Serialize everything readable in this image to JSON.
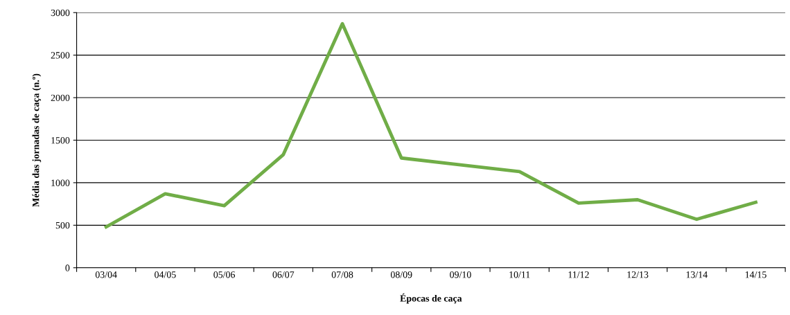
{
  "chart_data": {
    "type": "line",
    "xlabel": "Épocas de caça",
    "ylabel": "Média das jornadas de caça (n.º)",
    "categories": [
      "03/04",
      "04/05",
      "05/06",
      "06/07",
      "07/08",
      "08/09",
      "09/10",
      "10/11",
      "11/12",
      "12/13",
      "13/14",
      "14/15"
    ],
    "series": [
      {
        "color": "#70ad47",
        "values": [
          480,
          870,
          730,
          1330,
          2870,
          1290,
          1210,
          1130,
          760,
          800,
          570,
          770
        ]
      }
    ],
    "ylim": [
      0,
      3000
    ],
    "yticks": [
      0,
      500,
      1000,
      1500,
      2000,
      2500,
      3000
    ],
    "grid": "y",
    "marker": "none",
    "line_style": "solid"
  }
}
